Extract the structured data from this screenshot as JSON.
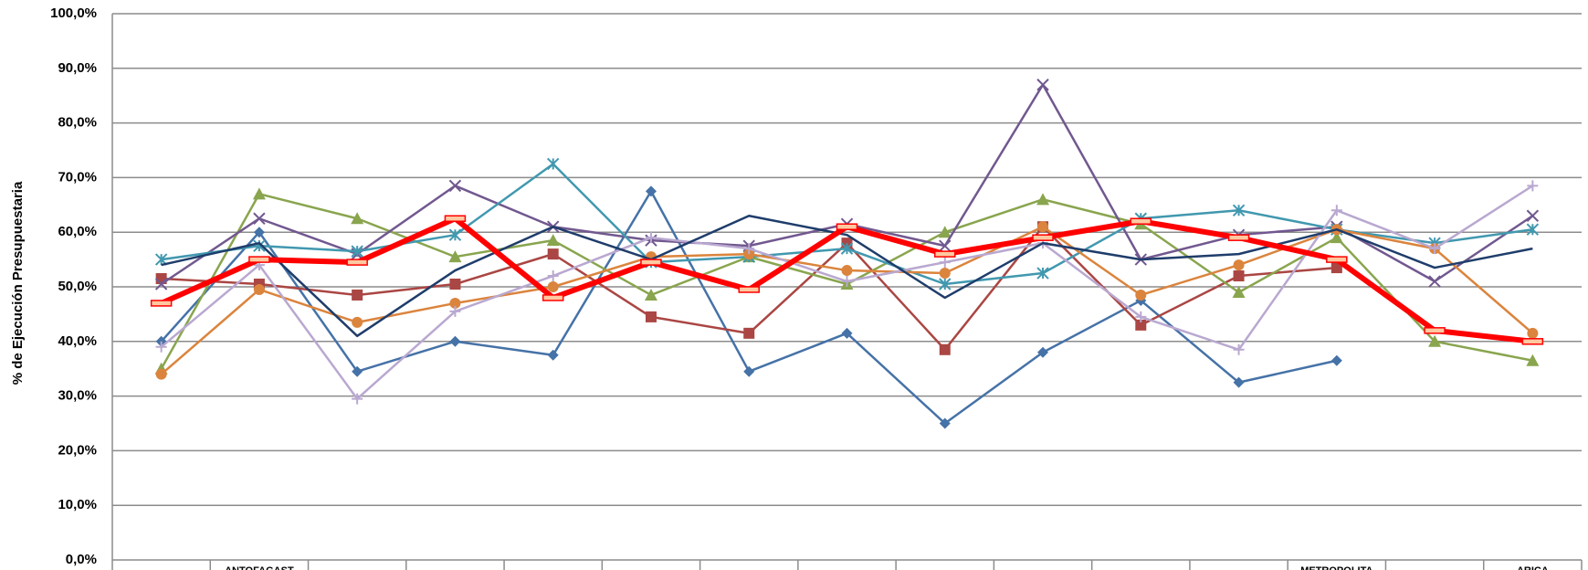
{
  "chart_data": {
    "type": "line",
    "y_label": "% de Ejecución Presupuestaria",
    "categories": [
      null,
      "ANTOFAGAST",
      null,
      null,
      null,
      null,
      null,
      null,
      null,
      null,
      null,
      null,
      "METROPOLITA",
      null,
      "ARICA"
    ],
    "ylim": [
      0,
      100
    ],
    "yticks": [
      {
        "value": 0,
        "label": "0,0%"
      },
      {
        "value": 10,
        "label": "10,0%"
      },
      {
        "value": 20,
        "label": "20,0%"
      },
      {
        "value": 30,
        "label": "30,0%"
      },
      {
        "value": 40,
        "label": "40,0%"
      },
      {
        "value": 50,
        "label": "50,0%"
      },
      {
        "value": 60,
        "label": "60,0%"
      },
      {
        "value": 70,
        "label": "70,0%"
      },
      {
        "value": 80,
        "label": "80,0%"
      },
      {
        "value": 90,
        "label": "90,0%"
      },
      {
        "value": 100,
        "label": "100,0%"
      }
    ],
    "grid": true,
    "series": [
      {
        "color": "#4572a7",
        "marker": "diamond",
        "values": [
          40,
          60,
          34.5,
          40,
          37.5,
          67.5,
          34.5,
          41.5,
          25,
          38,
          47.5,
          32.5,
          36.5,
          null,
          null
        ]
      },
      {
        "color": "#aa4643",
        "marker": "square",
        "values": [
          51.5,
          50.5,
          48.5,
          50.5,
          56,
          44.5,
          41.5,
          58,
          38.5,
          61,
          43,
          52,
          53.5,
          null,
          null
        ]
      },
      {
        "color": "#89a54e",
        "marker": "triangle",
        "values": [
          35,
          67,
          62.5,
          55.5,
          58.5,
          48.5,
          55.5,
          50.5,
          60,
          66,
          61.5,
          49,
          59,
          40,
          36.5
        ]
      },
      {
        "color": "#71588f",
        "marker": "x",
        "values": [
          50.5,
          62.5,
          56,
          68.5,
          61,
          58.5,
          57.5,
          61.5,
          57.5,
          87,
          55,
          59.5,
          61,
          51,
          63
        ]
      },
      {
        "color": "#4198af",
        "marker": "star",
        "values": [
          55,
          57.5,
          56.5,
          59.5,
          72.5,
          54.5,
          55.5,
          57,
          50.5,
          52.5,
          62.5,
          64,
          60.5,
          58,
          60.5
        ]
      },
      {
        "color": "#db843d",
        "marker": "circle",
        "values": [
          34,
          49.5,
          43.5,
          47,
          50,
          55.5,
          56,
          53,
          52.5,
          61,
          48.5,
          54,
          60.5,
          57,
          41.5
        ]
      },
      {
        "color": "#b9a8d0",
        "marker": "plus",
        "values": [
          39,
          54,
          29.5,
          45.5,
          52,
          59,
          57,
          51,
          54.5,
          58,
          44.5,
          38.5,
          64,
          57,
          68.5
        ]
      },
      {
        "color": "#1f3d6b",
        "marker": "none",
        "values": [
          54,
          58,
          41,
          53,
          61,
          55,
          63,
          59.5,
          48,
          58,
          55,
          56,
          60.5,
          53.5,
          57
        ]
      },
      {
        "color": "#ff0000",
        "marker": "dash",
        "width": 6,
        "values": [
          47,
          55,
          54.5,
          62.5,
          48,
          54.5,
          49.5,
          61,
          56,
          59,
          62,
          59,
          55,
          42,
          40
        ]
      }
    ]
  }
}
